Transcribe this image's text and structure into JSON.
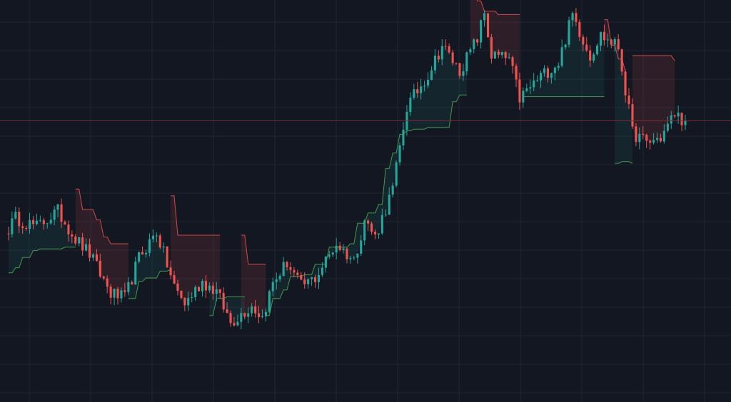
{
  "colors": {
    "background": "#131722",
    "grid": "#1f2433",
    "up": "#26a69a",
    "down": "#ef5350",
    "stop_up_line": "#4caf50",
    "stop_down_line": "#ef5350",
    "stop_up_fill": "rgba(38,166,154,0.10)",
    "stop_down_fill": "rgba(239,83,80,0.12)",
    "last_price_line": "#7a2e33"
  },
  "chart_data": {
    "type": "candlestick",
    "grid": true,
    "indicator": "trailing-stop",
    "ylim": [
      0,
      100
    ],
    "xlim": [
      0,
      193
    ],
    "last_price": 71.0,
    "anchors": [
      [
        0,
        38.0
      ],
      [
        3,
        42.5
      ],
      [
        9,
        40.0
      ],
      [
        15,
        44.5
      ],
      [
        20,
        36.5
      ],
      [
        24,
        32.0
      ],
      [
        30,
        20.5
      ],
      [
        34,
        19.0
      ],
      [
        38,
        31.0
      ],
      [
        43,
        38.5
      ],
      [
        48,
        22.5
      ],
      [
        51,
        17.5
      ],
      [
        56,
        24.0
      ],
      [
        60,
        21.0
      ],
      [
        64,
        12.0
      ],
      [
        70,
        17.0
      ],
      [
        73,
        13.5
      ],
      [
        76,
        23.5
      ],
      [
        80,
        29.5
      ],
      [
        84,
        22.5
      ],
      [
        88,
        25.0
      ],
      [
        94,
        35.0
      ],
      [
        99,
        30.0
      ],
      [
        102,
        42.0
      ],
      [
        105,
        37.0
      ],
      [
        110,
        51.0
      ],
      [
        114,
        75.0
      ],
      [
        120,
        84.5
      ],
      [
        124,
        93.0
      ],
      [
        129,
        85.5
      ],
      [
        134,
        95.0
      ],
      [
        136,
        102.5
      ],
      [
        138,
        90.0
      ],
      [
        143,
        89.0
      ],
      [
        146,
        77.5
      ],
      [
        152,
        84.0
      ],
      [
        157,
        88.0
      ],
      [
        161,
        102.0
      ],
      [
        166,
        90.0
      ],
      [
        169,
        96.0
      ],
      [
        174,
        92.5
      ],
      [
        178,
        67.5
      ],
      [
        182,
        64.5
      ],
      [
        186,
        66.0
      ],
      [
        190,
        73.0
      ],
      [
        193,
        71.0
      ]
    ],
    "stop_segments": [
      {
        "side": "up",
        "levels": [
          [
            1,
            26.5
          ],
          [
            3,
            28.0
          ],
          [
            5,
            31.0
          ],
          [
            8,
            33.0
          ],
          [
            10,
            33.5
          ],
          [
            17,
            34.0
          ],
          [
            20,
            34.0
          ]
        ]
      },
      {
        "side": "down",
        "levels": [
          [
            20,
            51.0
          ],
          [
            22,
            45.0
          ],
          [
            26,
            42.0
          ],
          [
            28,
            37.0
          ],
          [
            30,
            35.0
          ],
          [
            35,
            35.0
          ]
        ]
      },
      {
        "side": "up",
        "levels": [
          [
            35,
            19.0
          ],
          [
            38,
            24.0
          ],
          [
            40,
            25.0
          ],
          [
            44,
            27.0
          ],
          [
            47,
            27.5
          ]
        ]
      },
      {
        "side": "down",
        "levels": [
          [
            47,
            49.0
          ],
          [
            49,
            37.5
          ],
          [
            54,
            37.5
          ],
          [
            61,
            37.5
          ]
        ]
      },
      {
        "side": "up",
        "levels": [
          [
            58,
            14.0
          ],
          [
            60,
            19.0
          ],
          [
            63,
            19.5
          ],
          [
            68,
            19.5
          ]
        ]
      },
      {
        "side": "down",
        "levels": [
          [
            67,
            37.5
          ],
          [
            69,
            29.0
          ],
          [
            74,
            29.0
          ]
        ]
      },
      {
        "side": "up",
        "levels": [
          [
            74,
            14.0
          ],
          [
            76,
            19.0
          ],
          [
            79,
            21.5
          ],
          [
            81,
            25.5
          ],
          [
            85,
            26.0
          ],
          [
            88,
            29.0
          ],
          [
            92,
            34.0
          ],
          [
            98,
            35.0
          ],
          [
            100,
            41.0
          ],
          [
            103,
            44.0
          ],
          [
            106,
            46.5
          ],
          [
            108,
            57.0
          ],
          [
            110,
            61.5
          ],
          [
            112,
            67.0
          ],
          [
            114,
            68.0
          ],
          [
            116,
            68.5
          ],
          [
            120,
            69.0
          ],
          [
            126,
            69.0
          ],
          [
            127,
            76.5
          ],
          [
            129,
            78.5
          ],
          [
            131,
            78.5
          ]
        ]
      },
      {
        "side": "down",
        "levels": [
          [
            132,
            108.0
          ],
          [
            134,
            106.0
          ],
          [
            136,
            103.0
          ],
          [
            140,
            102.0
          ],
          [
            146,
            102.0
          ]
        ]
      },
      {
        "side": "up",
        "levels": [
          [
            147,
            78.0
          ],
          [
            160,
            78.0
          ],
          [
            170,
            78.0
          ]
        ]
      },
      {
        "side": "down",
        "levels": [
          [
            170,
            100.5
          ],
          [
            172,
            93.0
          ],
          [
            174,
            89.0
          ],
          [
            176,
            85.5
          ]
        ]
      },
      {
        "side": "up",
        "levels": [
          [
            173,
            58.5
          ],
          [
            175,
            59.0
          ],
          [
            178,
            58.5
          ]
        ]
      },
      {
        "side": "down",
        "levels": [
          [
            178,
            90.0
          ],
          [
            184,
            90.0
          ],
          [
            190,
            88.5
          ]
        ]
      }
    ]
  }
}
